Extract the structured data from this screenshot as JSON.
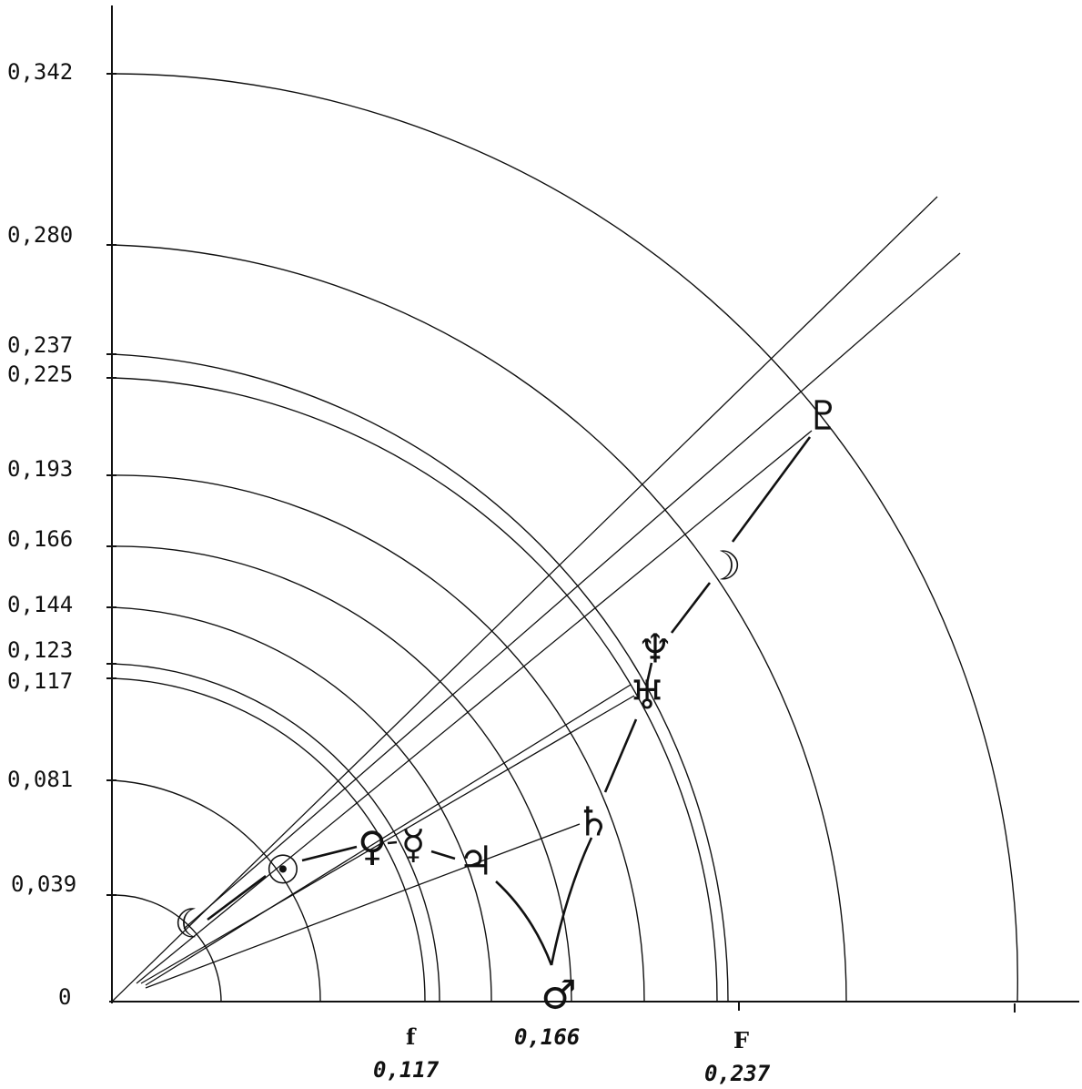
{
  "y_axis_labels": [
    "0,342",
    "0,280",
    "0,237",
    "0,225",
    "0,193",
    "0,166",
    "0,144",
    "0,123",
    "0,117",
    "0,081",
    "0,039",
    "0"
  ],
  "x_axis_labels": {
    "f_letter": "f",
    "f_value": "0,117",
    "mid_value": "0,166",
    "F_letter": "F",
    "F_value": "0,237"
  },
  "bodies": [
    {
      "name": "moon",
      "glyph": "☾"
    },
    {
      "name": "sun",
      "glyph": "☉"
    },
    {
      "name": "venus",
      "glyph": "♀"
    },
    {
      "name": "mercury",
      "glyph": "☿"
    },
    {
      "name": "jupiter",
      "glyph": "♃"
    },
    {
      "name": "mars",
      "glyph": "♂"
    },
    {
      "name": "saturn",
      "glyph": "♄"
    },
    {
      "name": "uranus",
      "glyph": "♅"
    },
    {
      "name": "neptune",
      "glyph": "♆"
    },
    {
      "name": "moon-dark",
      "glyph": "☽"
    },
    {
      "name": "pluto",
      "glyph": "♇"
    }
  ]
}
